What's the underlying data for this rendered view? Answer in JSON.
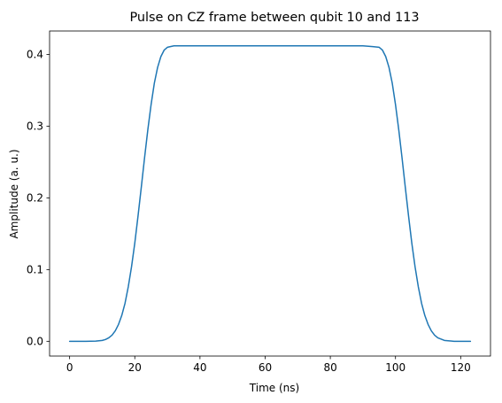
{
  "chart_data": {
    "type": "line",
    "title": "Pulse on CZ frame between qubit 10 and 113",
    "xlabel": "Time (ns)",
    "ylabel": "Amplitude (a. u.)",
    "xlim": [
      -6.15,
      129.15
    ],
    "ylim": [
      -0.0206,
      0.4327
    ],
    "xticks": [
      0,
      20,
      40,
      60,
      80,
      100,
      120
    ],
    "xtick_labels": [
      "0",
      "20",
      "40",
      "60",
      "80",
      "100",
      "120"
    ],
    "yticks": [
      0.0,
      0.1,
      0.2,
      0.3,
      0.4
    ],
    "ytick_labels": [
      "0.0",
      "0.1",
      "0.2",
      "0.3",
      "0.4"
    ],
    "grid": false,
    "legend": "none",
    "series": [
      {
        "color": "#1f77b4",
        "x": [
          0,
          5,
          8,
          10,
          11,
          12,
          13,
          14,
          15,
          16,
          17,
          18,
          19,
          20,
          21,
          22,
          23,
          24,
          25,
          26,
          27,
          28,
          29,
          30,
          32,
          35,
          40,
          50,
          60,
          70,
          80,
          90,
          93,
          95,
          96,
          97,
          98,
          99,
          100,
          101,
          102,
          103,
          104,
          105,
          106,
          107,
          108,
          109,
          110,
          111,
          112,
          113,
          115,
          118,
          123
        ],
        "y": [
          0.0,
          0.0,
          0.0003,
          0.0012,
          0.0025,
          0.0048,
          0.0085,
          0.0145,
          0.0235,
          0.036,
          0.053,
          0.076,
          0.104,
          0.137,
          0.175,
          0.215,
          0.256,
          0.295,
          0.33,
          0.36,
          0.382,
          0.397,
          0.406,
          0.41,
          0.412,
          0.412,
          0.412,
          0.412,
          0.412,
          0.412,
          0.412,
          0.412,
          0.411,
          0.41,
          0.406,
          0.397,
          0.382,
          0.36,
          0.33,
          0.295,
          0.256,
          0.215,
          0.175,
          0.137,
          0.104,
          0.076,
          0.053,
          0.036,
          0.0235,
          0.0145,
          0.0085,
          0.0048,
          0.0012,
          0.0,
          0.0
        ]
      }
    ]
  }
}
